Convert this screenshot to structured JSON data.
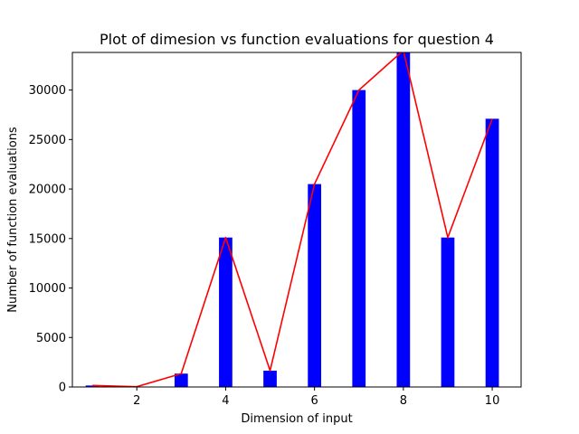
{
  "chart_data": {
    "type": "bar",
    "title": "Plot of dimesion vs function evaluations for question 4",
    "xlabel": "Dimension of input",
    "ylabel": "Number of function evaluations",
    "xlim": [
      0.55,
      10.65
    ],
    "ylim": [
      0,
      33800
    ],
    "xticks": [
      2,
      4,
      6,
      8,
      10
    ],
    "yticks": [
      0,
      5000,
      10000,
      15000,
      20000,
      25000,
      30000
    ],
    "grid": false,
    "legend": "none",
    "x": [
      1,
      2,
      3,
      4,
      5,
      6,
      7,
      8,
      9,
      10
    ],
    "series": [
      {
        "type": "bar",
        "color": "#0000ff",
        "values": [
          150,
          30,
          1350,
          15100,
          1650,
          20500,
          30000,
          34000,
          15100,
          27100
        ]
      },
      {
        "type": "line",
        "color": "#ff0000",
        "values": [
          150,
          30,
          1350,
          15100,
          1650,
          20500,
          30000,
          34000,
          15100,
          27100
        ]
      }
    ]
  }
}
